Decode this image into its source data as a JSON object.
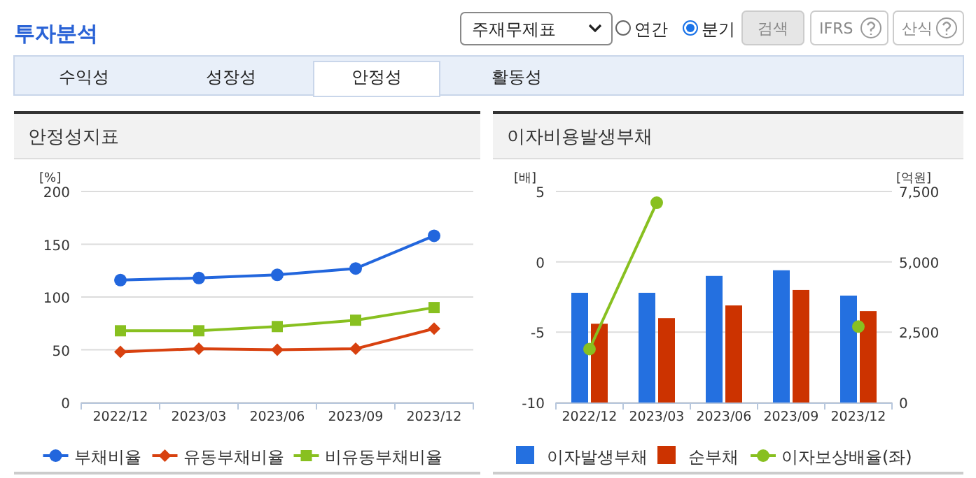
{
  "chart_data": [
    {
      "type": "other",
      "title": "투자분석",
      "annotations": [
        "주재무제표",
        "연간",
        "분기",
        "검색",
        "IFRS",
        "산식",
        "수익성",
        "성장성",
        "안정성",
        "활동성"
      ]
    },
    {
      "type": "line",
      "title": "안정성지표",
      "ylabel": "[%]",
      "categories": [
        "2022/12",
        "2023/03",
        "2023/06",
        "2023/09",
        "2023/12"
      ],
      "ylim": [
        0,
        200
      ],
      "yticks": [
        0,
        50,
        100,
        150,
        200
      ],
      "grid": "y",
      "legend": "bottom",
      "series": [
        {
          "name": "부채비율",
          "color": "#2266dd",
          "marker": "circle",
          "values": [
            116,
            118,
            121,
            127,
            158
          ]
        },
        {
          "name": "유동부채비율",
          "color": "#d8410f",
          "marker": "diamond",
          "values": [
            48,
            51,
            50,
            51,
            70
          ]
        },
        {
          "name": "비유동부채비율",
          "color": "#88c020",
          "marker": "square",
          "values": [
            68,
            68,
            72,
            78,
            90
          ]
        }
      ]
    },
    {
      "type": "bar",
      "title": "이자비용발생부채",
      "ylabel": "[배]",
      "y2label": "[억원]",
      "categories": [
        "2022/12",
        "2023/03",
        "2023/06",
        "2023/09",
        "2023/12"
      ],
      "ylim": [
        -10,
        5
      ],
      "yticks": [
        -10,
        -5,
        0,
        5
      ],
      "y2lim": [
        0,
        7500
      ],
      "y2ticks": [
        0,
        {
          "value": 2500,
          "label": "2,500"
        },
        {
          "value": 5000,
          "label": "5,000"
        },
        {
          "value": 7500,
          "label": "7,500"
        }
      ],
      "grid": "y",
      "legend": "bottom",
      "series": [
        {
          "name": "이자발생부채",
          "type": "bar",
          "axis": "y2",
          "color": "#2470e0",
          "values": [
            3900,
            3900,
            4500,
            4700,
            3800
          ]
        },
        {
          "name": "순부채",
          "type": "bar",
          "axis": "y2",
          "color": "#cc3300",
          "values": [
            2800,
            3000,
            3450,
            4000,
            3250
          ]
        },
        {
          "name": "이자보상배율(좌)",
          "type": "line",
          "axis": "y",
          "color": "#88c020",
          "marker": "circle",
          "values": [
            -6.2,
            4.2,
            null,
            null,
            -4.6
          ]
        }
      ]
    }
  ]
}
